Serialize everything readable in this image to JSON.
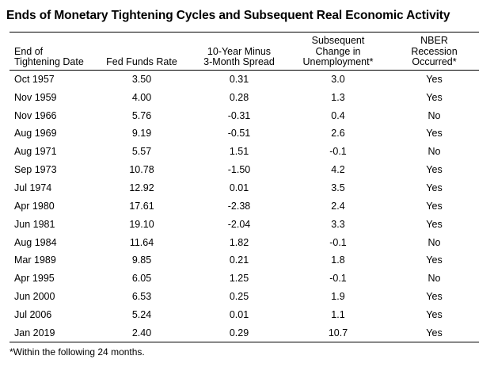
{
  "title": "Ends of Monetary Tightening Cycles and Subsequent Real Economic Activity",
  "headers": [
    [
      "End of",
      "Tightening Date"
    ],
    [
      "Fed Funds Rate"
    ],
    [
      "10-Year Minus",
      "3-Month Spread"
    ],
    [
      "Subsequent",
      "Change in",
      "Unemployment*"
    ],
    [
      "NBER",
      "Recession",
      "Occurred*"
    ]
  ],
  "rows": [
    [
      "Oct 1957",
      "3.50",
      "0.31",
      "3.0",
      "Yes"
    ],
    [
      "Nov 1959",
      "4.00",
      "0.28",
      "1.3",
      "Yes"
    ],
    [
      "Nov 1966",
      "5.76",
      "-0.31",
      "0.4",
      "No"
    ],
    [
      "Aug 1969",
      "9.19",
      "-0.51",
      "2.6",
      "Yes"
    ],
    [
      "Aug 1971",
      "5.57",
      "1.51",
      "-0.1",
      "No"
    ],
    [
      "Sep 1973",
      "10.78",
      "-1.50",
      "4.2",
      "Yes"
    ],
    [
      "Jul 1974",
      "12.92",
      "0.01",
      "3.5",
      "Yes"
    ],
    [
      "Apr 1980",
      "17.61",
      "-2.38",
      "2.4",
      "Yes"
    ],
    [
      "Jun 1981",
      "19.10",
      "-2.04",
      "3.3",
      "Yes"
    ],
    [
      "Aug 1984",
      "11.64",
      "1.82",
      "-0.1",
      "No"
    ],
    [
      "Mar 1989",
      "9.85",
      "0.21",
      "1.8",
      "Yes"
    ],
    [
      "Apr 1995",
      "6.05",
      "1.25",
      "-0.1",
      "No"
    ],
    [
      "Jun 2000",
      "6.53",
      "0.25",
      "1.9",
      "Yes"
    ],
    [
      "Jul 2006",
      "5.24",
      "0.01",
      "1.1",
      "Yes"
    ],
    [
      "Jan 2019",
      "2.40",
      "0.29",
      "10.7",
      "Yes"
    ]
  ],
  "footnote": "*Within the following 24 months."
}
